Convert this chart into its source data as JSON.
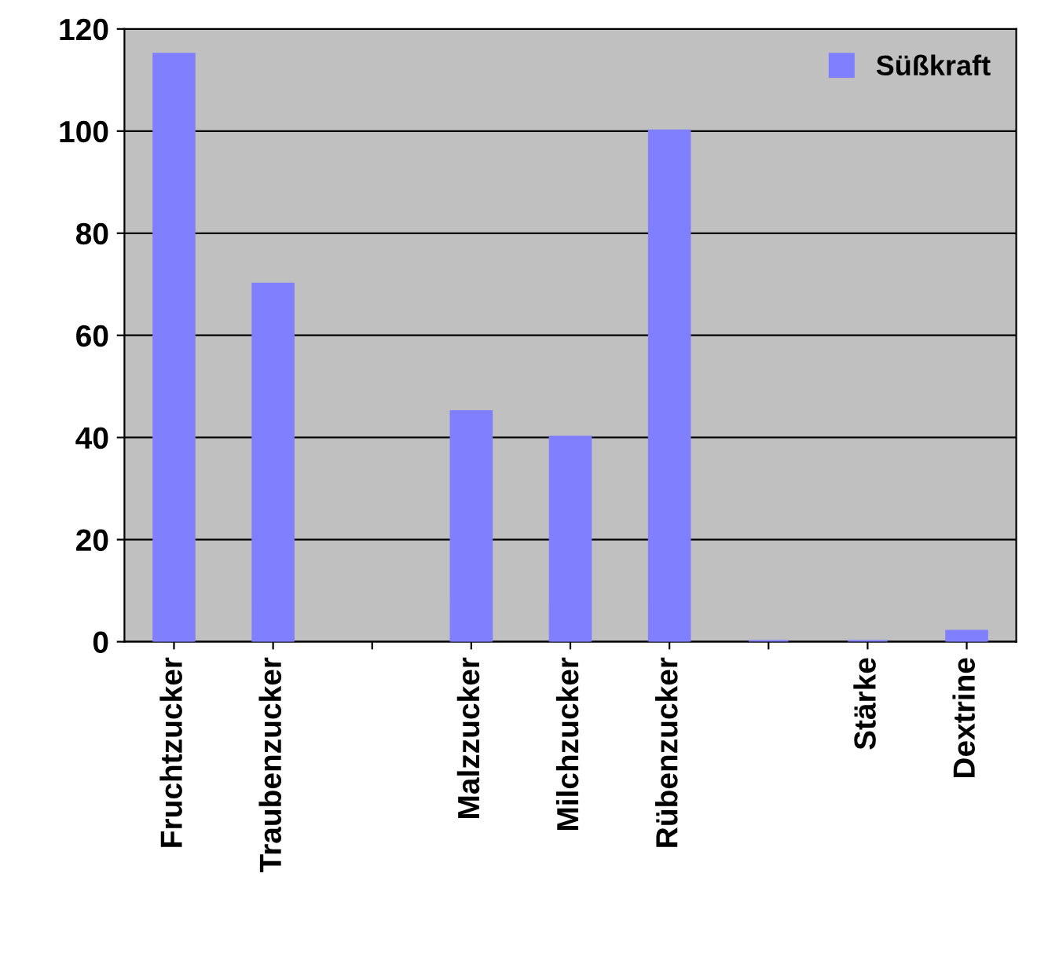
{
  "chart_data": {
    "type": "bar",
    "categories": [
      "Fruchtzucker",
      "Traubenzucker",
      null,
      "Malzzucker",
      "Milchzucker",
      "Rübenzucker",
      null,
      "Stärke",
      "Dextrine"
    ],
    "series": [
      {
        "name": "Süßkraft",
        "color": "#8080ff",
        "values": [
          115,
          70,
          null,
          45,
          40,
          100,
          0,
          0,
          2
        ]
      }
    ],
    "ylim": [
      0,
      120
    ],
    "yticks": [
      0,
      20,
      40,
      60,
      80,
      100,
      120
    ],
    "grid": "y",
    "legend": "top right"
  }
}
